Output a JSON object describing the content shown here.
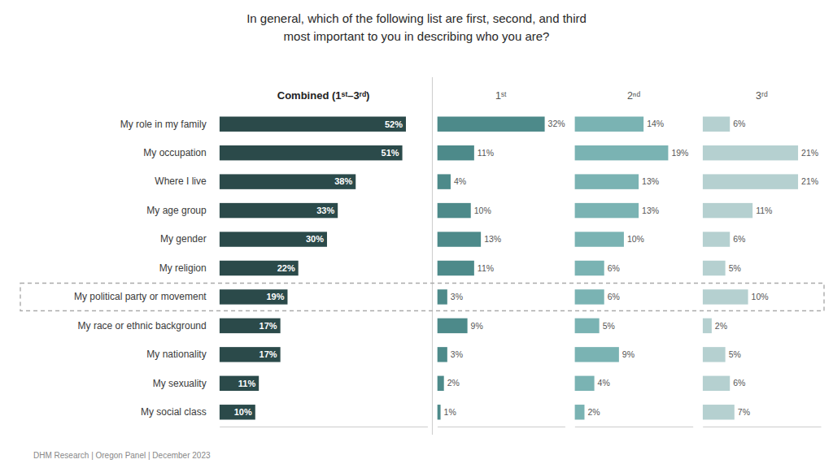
{
  "chart_data": {
    "type": "bar",
    "orientation": "horizontal",
    "title": "In general, which of the following list are first, second, and third",
    "subtitle": "most important to you in describing who you are?",
    "categories": [
      "My role in my family",
      "My occupation",
      "Where I live",
      "My age group",
      "My gender",
      "My religion",
      "My political party or movement",
      "My race or ethnic background",
      "My nationality",
      "My sexuality",
      "My social class"
    ],
    "series": [
      {
        "name": "Combined (1ˢᵗ–3ʳᵈ)",
        "color": "#2b4a4a",
        "xlim": [
          0,
          58
        ],
        "values": [
          52,
          51,
          38,
          33,
          30,
          22,
          19,
          17,
          17,
          11,
          10
        ],
        "value_labels": [
          "52%",
          "51%",
          "38%",
          "33%",
          "30%",
          "22%",
          "19%",
          "17%",
          "17%",
          "11%",
          "10%"
        ]
      },
      {
        "name": "1ˢᵗ",
        "color": "#4d8a8a",
        "xlim": [
          0,
          38
        ],
        "values": [
          32,
          11,
          4,
          10,
          13,
          11,
          3,
          9,
          3,
          2,
          1
        ],
        "value_labels": [
          "32%",
          "11%",
          "4%",
          "10%",
          "13%",
          "11%",
          "3%",
          "9%",
          "3%",
          "2%",
          "1%"
        ]
      },
      {
        "name": "2ⁿᵈ",
        "color": "#7ab3b3",
        "xlim": [
          0,
          24
        ],
        "values": [
          14,
          19,
          13,
          13,
          10,
          6,
          6,
          5,
          9,
          4,
          2
        ],
        "value_labels": [
          "14%",
          "19%",
          "13%",
          "13%",
          "10%",
          "6%",
          "6%",
          "5%",
          "9%",
          "4%",
          "2%"
        ]
      },
      {
        "name": "3ʳᵈ",
        "color": "#b5d0d0",
        "xlim": [
          0,
          26
        ],
        "values": [
          6,
          21,
          21,
          11,
          6,
          5,
          10,
          2,
          5,
          6,
          7
        ],
        "value_labels": [
          "6%",
          "21%",
          "21%",
          "11%",
          "6%",
          "5%",
          "10%",
          "2%",
          "5%",
          "6%",
          "7%"
        ]
      }
    ],
    "data_labels": true,
    "tick_labels": "y",
    "grid": false,
    "highlight": 6,
    "footer": "DHM Research | Oregon Panel | December 2023"
  }
}
